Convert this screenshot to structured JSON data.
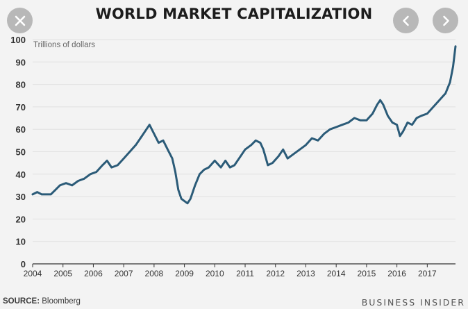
{
  "header": {
    "title": "WORLD MARKET CAPITALIZATION",
    "close_icon": "close-icon",
    "prev_icon": "chevron-left-icon",
    "next_icon": "chevron-right-icon"
  },
  "footer": {
    "source_label": "SOURCE:",
    "source_value": "Bloomberg",
    "publisher": "BUSINESS INSIDER"
  },
  "colors": {
    "line": "#2b5b78",
    "grid": "#e2e2e2",
    "axis": "#333333"
  },
  "chart_data": {
    "type": "line",
    "title": "WORLD MARKET CAPITALIZATION",
    "ylabel": "Trillions of dollars",
    "xlabel": "",
    "ylim": [
      0,
      100
    ],
    "xlim": [
      2004.0,
      2017.93
    ],
    "yticks": [
      0,
      10,
      20,
      30,
      40,
      50,
      60,
      70,
      80,
      90,
      100
    ],
    "xticks": [
      "2004",
      "2005",
      "2006",
      "2007",
      "2008",
      "2009",
      "2010",
      "2011",
      "2012",
      "2013",
      "2014",
      "2015",
      "2016",
      "2017"
    ],
    "grid": true,
    "legend": "none",
    "series": [
      {
        "name": "",
        "x": [
          2004.0,
          2004.15,
          2004.3,
          2004.45,
          2004.6,
          2004.75,
          2004.9,
          2005.1,
          2005.3,
          2005.5,
          2005.7,
          2005.9,
          2006.1,
          2006.3,
          2006.45,
          2006.6,
          2006.8,
          2007.0,
          2007.2,
          2007.4,
          2007.6,
          2007.75,
          2007.85,
          2008.0,
          2008.15,
          2008.3,
          2008.45,
          2008.6,
          2008.7,
          2008.8,
          2008.9,
          2009.0,
          2009.1,
          2009.2,
          2009.35,
          2009.5,
          2009.65,
          2009.8,
          2010.0,
          2010.2,
          2010.35,
          2010.5,
          2010.65,
          2010.8,
          2011.0,
          2011.2,
          2011.35,
          2011.5,
          2011.6,
          2011.75,
          2011.9,
          2012.1,
          2012.25,
          2012.4,
          2012.6,
          2012.8,
          2013.0,
          2013.2,
          2013.4,
          2013.6,
          2013.8,
          2014.0,
          2014.2,
          2014.4,
          2014.6,
          2014.8,
          2015.0,
          2015.2,
          2015.35,
          2015.45,
          2015.55,
          2015.7,
          2015.85,
          2016.0,
          2016.1,
          2016.2,
          2016.35,
          2016.5,
          2016.65,
          2016.8,
          2017.0,
          2017.2,
          2017.4,
          2017.6,
          2017.75,
          2017.85,
          2017.93
        ],
        "values": [
          31,
          32,
          31,
          31,
          31,
          33,
          35,
          36,
          35,
          37,
          38,
          40,
          41,
          44,
          46,
          43,
          44,
          47,
          50,
          53,
          57,
          60,
          62,
          58,
          54,
          55,
          51,
          47,
          41,
          33,
          29,
          28,
          27,
          29,
          35,
          40,
          42,
          43,
          46,
          43,
          46,
          43,
          44,
          47,
          51,
          53,
          55,
          54,
          51,
          44,
          45,
          48,
          51,
          47,
          49,
          51,
          53,
          56,
          55,
          58,
          60,
          61,
          62,
          63,
          65,
          64,
          64,
          67,
          71,
          73,
          71,
          66,
          63,
          62,
          57,
          59,
          63,
          62,
          65,
          66,
          67,
          70,
          73,
          76,
          81,
          88,
          97
        ]
      }
    ]
  }
}
